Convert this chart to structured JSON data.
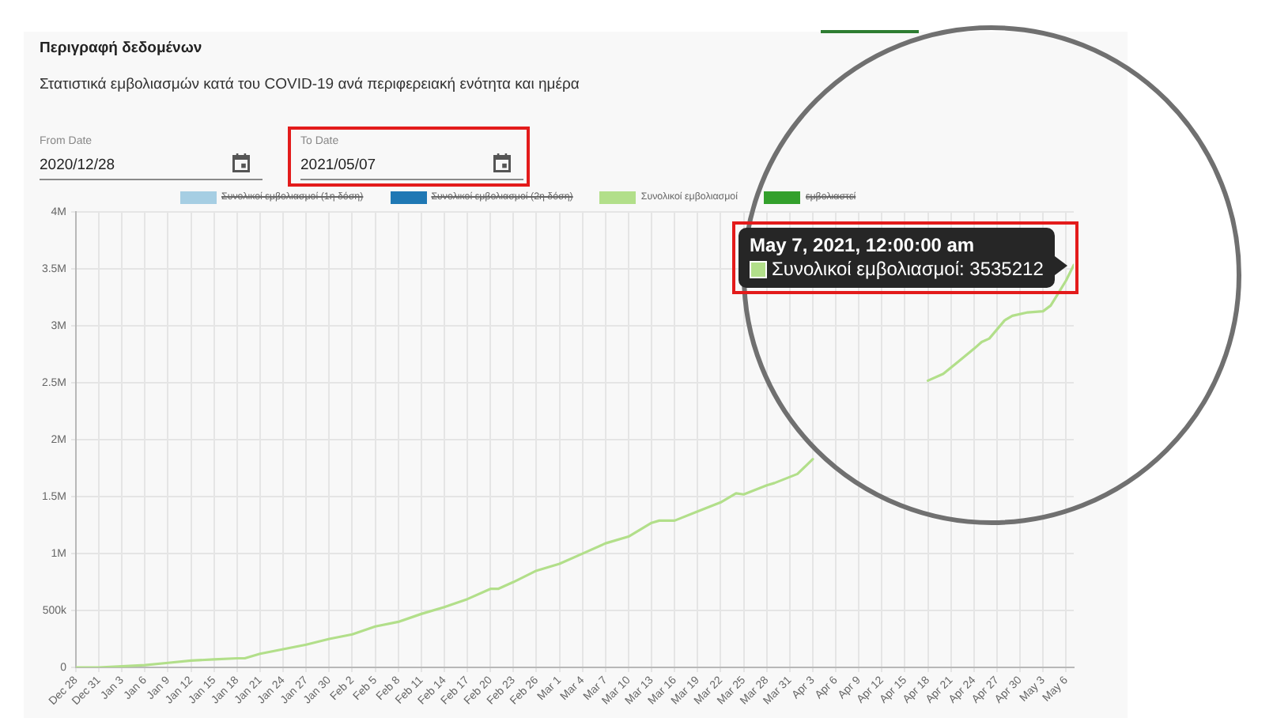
{
  "chart_data": {
    "type": "line",
    "title": "Περιγραφή δεδομένων",
    "subtitle": "Στατιστικά εμβολιασμών κατά του COVID-19 ανά περιφερειακή ενότητα και ημέρα",
    "x": [
      "2020-12-28",
      "2020-12-31",
      "2021-01-03",
      "2021-01-06",
      "2021-01-09",
      "2021-01-12",
      "2021-01-15",
      "2021-01-18",
      "2021-01-19",
      "2021-01-21",
      "2021-01-24",
      "2021-01-27",
      "2021-01-30",
      "2021-02-02",
      "2021-02-05",
      "2021-02-08",
      "2021-02-11",
      "2021-02-14",
      "2021-02-17",
      "2021-02-20",
      "2021-02-21",
      "2021-02-23",
      "2021-02-26",
      "2021-03-01",
      "2021-03-04",
      "2021-03-07",
      "2021-03-10",
      "2021-03-13",
      "2021-03-14",
      "2021-03-16",
      "2021-03-19",
      "2021-03-22",
      "2021-03-24",
      "2021-03-25",
      "2021-03-28",
      "2021-03-29",
      "2021-04-01",
      "2021-04-03",
      "2021-04-10",
      "2021-04-18",
      "2021-04-20",
      "2021-04-22",
      "2021-04-24",
      "2021-04-25",
      "2021-04-26",
      "2021-04-27",
      "2021-04-28",
      "2021-04-29",
      "2021-05-01",
      "2021-05-03",
      "2021-05-04",
      "2021-05-05",
      "2021-05-06",
      "2021-05-07"
    ],
    "series": [
      {
        "name": "Συνολικοί εμβολιασμοί (1η δόση)",
        "color": "#a6cee3",
        "values": [
          null,
          null,
          null,
          null,
          null,
          null,
          null,
          null,
          null,
          null,
          null,
          null,
          null,
          null,
          null,
          null,
          null,
          null,
          null,
          null,
          null,
          null,
          null,
          null,
          null,
          null,
          null,
          null,
          null,
          null,
          null,
          null,
          null,
          null,
          null,
          null,
          null,
          null,
          null,
          null,
          null,
          null,
          null,
          null,
          null,
          null,
          null,
          null,
          null,
          null,
          null,
          null,
          null,
          null
        ]
      },
      {
        "name": "Συνολικοί εμβολιασμοί (2η δόση)",
        "color": "#1f78b4",
        "values": [
          null,
          null,
          null,
          null,
          null,
          null,
          null,
          null,
          null,
          null,
          null,
          null,
          null,
          null,
          null,
          null,
          null,
          null,
          null,
          null,
          null,
          null,
          null,
          null,
          null,
          null,
          null,
          null,
          null,
          null,
          null,
          null,
          null,
          null,
          null,
          null,
          null,
          null,
          null,
          null,
          null,
          null,
          null,
          null,
          null,
          null,
          null,
          null,
          null,
          null,
          null,
          null,
          null,
          null
        ]
      },
      {
        "name": "Συνολικοί εμβολιασμοί",
        "color": "#b2df8a",
        "values": [
          0,
          0,
          10000,
          20000,
          40000,
          60000,
          70000,
          80000,
          80000,
          120000,
          160000,
          200000,
          250000,
          290000,
          360000,
          400000,
          470000,
          530000,
          600000,
          690000,
          690000,
          750000,
          850000,
          910000,
          1000000,
          1090000,
          1150000,
          1270000,
          1290000,
          1290000,
          1370000,
          1450000,
          1530000,
          1520000,
          1600000,
          1620000,
          1700000,
          1830000,
          null,
          2520000,
          2580000,
          2690000,
          2800000,
          2860000,
          2890000,
          2970000,
          3050000,
          3090000,
          3120000,
          3130000,
          3180000,
          3290000,
          3400000,
          3535212
        ]
      },
      {
        "name": "εμβολιαστεί",
        "color": "#33a02c",
        "values": [
          null,
          null,
          null,
          null,
          null,
          null,
          null,
          null,
          null,
          null,
          null,
          null,
          null,
          null,
          null,
          null,
          null,
          null,
          null,
          null,
          null,
          null,
          null,
          null,
          null,
          null,
          null,
          null,
          null,
          null,
          null,
          null,
          null,
          null,
          null,
          null,
          null,
          null,
          null,
          null,
          null,
          null,
          null,
          null,
          null,
          null,
          null,
          null,
          null,
          null,
          null,
          null,
          null,
          null
        ]
      }
    ],
    "xlim": [
      "2020-12-28",
      "2021-05-07"
    ],
    "xticks": [
      {
        "value": "2020-12-28",
        "label": "Dec 28"
      },
      {
        "value": "2020-12-31",
        "label": "Dec 31"
      },
      {
        "value": "2021-01-03",
        "label": "Jan 3"
      },
      {
        "value": "2021-01-06",
        "label": "Jan 6"
      },
      {
        "value": "2021-01-09",
        "label": "Jan 9"
      },
      {
        "value": "2021-01-12",
        "label": "Jan 12"
      },
      {
        "value": "2021-01-15",
        "label": "Jan 15"
      },
      {
        "value": "2021-01-18",
        "label": "Jan 18"
      },
      {
        "value": "2021-01-21",
        "label": "Jan 21"
      },
      {
        "value": "2021-01-24",
        "label": "Jan 24"
      },
      {
        "value": "2021-01-27",
        "label": "Jan 27"
      },
      {
        "value": "2021-01-30",
        "label": "Jan 30"
      },
      {
        "value": "2021-02-02",
        "label": "Feb 2"
      },
      {
        "value": "2021-02-05",
        "label": "Feb 5"
      },
      {
        "value": "2021-02-08",
        "label": "Feb 8"
      },
      {
        "value": "2021-02-11",
        "label": "Feb 11"
      },
      {
        "value": "2021-02-14",
        "label": "Feb 14"
      },
      {
        "value": "2021-02-17",
        "label": "Feb 17"
      },
      {
        "value": "2021-02-20",
        "label": "Feb 20"
      },
      {
        "value": "2021-02-23",
        "label": "Feb 23"
      },
      {
        "value": "2021-02-26",
        "label": "Feb 26"
      },
      {
        "value": "2021-03-01",
        "label": "Mar 1"
      },
      {
        "value": "2021-03-04",
        "label": "Mar 4"
      },
      {
        "value": "2021-03-07",
        "label": "Mar 7"
      },
      {
        "value": "2021-03-10",
        "label": "Mar 10"
      },
      {
        "value": "2021-03-13",
        "label": "Mar 13"
      },
      {
        "value": "2021-03-16",
        "label": "Mar 16"
      },
      {
        "value": "2021-03-19",
        "label": "Mar 19"
      },
      {
        "value": "2021-03-22",
        "label": "Mar 22"
      },
      {
        "value": "2021-03-25",
        "label": "Mar 25"
      },
      {
        "value": "2021-03-28",
        "label": "Mar 28"
      },
      {
        "value": "2021-03-31",
        "label": "Mar 31"
      },
      {
        "value": "2021-04-03",
        "label": "Apr 3"
      },
      {
        "value": "2021-04-06",
        "label": "Apr 6"
      },
      {
        "value": "2021-04-09",
        "label": "Apr 9"
      },
      {
        "value": "2021-04-12",
        "label": "Apr 12"
      },
      {
        "value": "2021-04-15",
        "label": "Apr 15"
      },
      {
        "value": "2021-04-18",
        "label": "Apr 18"
      },
      {
        "value": "2021-04-21",
        "label": "Apr 21"
      },
      {
        "value": "2021-04-24",
        "label": "Apr 24"
      },
      {
        "value": "2021-04-27",
        "label": "Apr 27"
      },
      {
        "value": "2021-04-30",
        "label": "Apr 30"
      },
      {
        "value": "2021-05-03",
        "label": "May 3"
      },
      {
        "value": "2021-05-06",
        "label": "May 6"
      }
    ],
    "ylim": [
      0,
      4000000
    ],
    "yticks": [
      0,
      {
        "value": 500000,
        "label": "500k"
      },
      {
        "value": 1000000,
        "label": "1M"
      },
      {
        "value": 1500000,
        "label": "1.5M"
      },
      {
        "value": 2000000,
        "label": "2M"
      },
      {
        "value": 2500000,
        "label": "2.5M"
      },
      {
        "value": 3000000,
        "label": "3M"
      },
      {
        "value": 3500000,
        "label": "3.5M"
      },
      {
        "value": 4000000,
        "label": "4M"
      }
    ],
    "grid": true,
    "legend": "top",
    "marker": "none",
    "annotations": [
      "From Date",
      "2020/12/28",
      "To Date",
      "2021/05/07",
      {
        "text": "May 7, 2021, 12:00:00 am\nΣυνολικοί εμβολιασμοί: 3535212",
        "x": "2021-05-07",
        "y": 3535212
      }
    ]
  }
}
